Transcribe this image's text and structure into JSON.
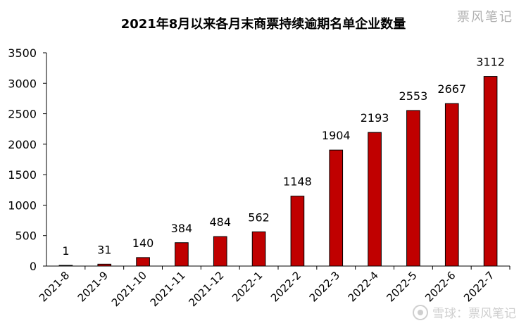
{
  "chart_data": {
    "type": "bar",
    "title": "2021年8月以来各月末商票持续逾期名单企业数量",
    "xlabel": "",
    "ylabel": "",
    "categories": [
      "2021-8",
      "2021-9",
      "2021-10",
      "2021-11",
      "2021-12",
      "2022-1",
      "2022-2",
      "2022-3",
      "2022-4",
      "2022-5",
      "2022-6",
      "2022-7"
    ],
    "values": [
      1,
      31,
      140,
      384,
      484,
      562,
      1148,
      1904,
      2193,
      2553,
      2667,
      3112
    ],
    "ylim": [
      0,
      3500
    ],
    "yticks": [
      0,
      500,
      1000,
      1500,
      2000,
      2500,
      3000,
      3500
    ],
    "grid": false,
    "legend": "none",
    "bar_color": "#c00000",
    "bar_edge_color": "#000000"
  },
  "watermark_top": "票风笔记",
  "watermark_bottom": "雪球：票风笔记"
}
